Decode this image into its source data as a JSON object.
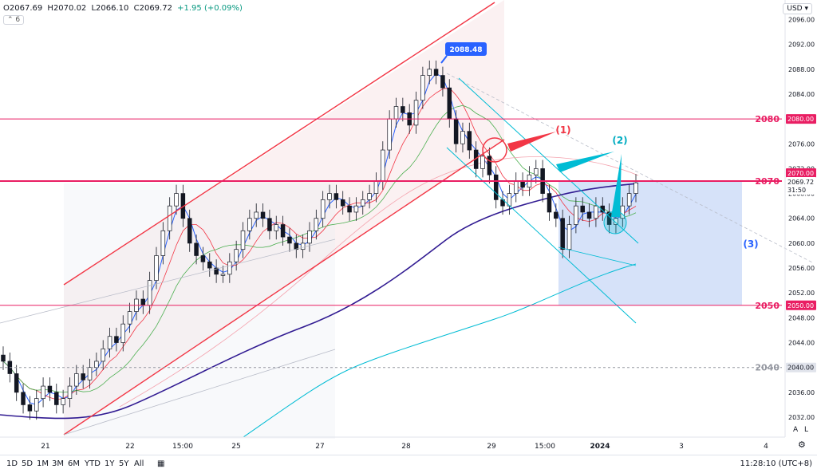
{
  "header": {
    "open": "O2067.69",
    "high": "H2070.02",
    "low": "L2066.10",
    "close": "C2069.72",
    "change": "+1.95 (+0.09%)",
    "collapse_label": "6",
    "currency": "USD"
  },
  "bottom": {
    "ranges": [
      "1D",
      "5D",
      "1M",
      "3M",
      "6M",
      "YTD",
      "1Y",
      "5Y",
      "All"
    ],
    "clock": "11:28:10 (UTC+8)",
    "scale_a": "A",
    "scale_l": "L"
  },
  "colors": {
    "up": "#089981",
    "down": "#131722",
    "level": "#e91e63",
    "channel": "#f23645",
    "ma_long": "#311b92",
    "ma_cyan": "#00bcd4",
    "target_box": "#c5d5f7"
  },
  "chart_data": {
    "type": "candlestick",
    "y_axis": {
      "range": [
        2030,
        2098
      ],
      "ticks": [
        2032,
        2036,
        2040,
        2044,
        2048,
        2052,
        2056,
        2060,
        2064,
        2068,
        2072,
        2076,
        2080,
        2084,
        2088,
        2092,
        2096
      ]
    },
    "x_axis": {
      "ticks": [
        "21",
        "22",
        "15:00",
        "25",
        "27",
        "28",
        "29",
        "15:00",
        "2024",
        "3",
        "4"
      ]
    },
    "price_labels": [
      {
        "value": 2080.0,
        "text": "2080.00"
      },
      {
        "value": 2070.0,
        "text": "2070.00"
      },
      {
        "value": 2069.72,
        "text": "2069.72"
      },
      {
        "value": 2068.8,
        "text": "31:50"
      },
      {
        "value": 2050.0,
        "text": "2050.00"
      },
      {
        "value": 2040.0,
        "text": "2040.00"
      }
    ],
    "levels": [
      {
        "value": 2080,
        "label": "2080"
      },
      {
        "value": 2070,
        "label": "2070"
      },
      {
        "value": 2050,
        "label": "2050"
      },
      {
        "value": 2040,
        "label": "2040"
      }
    ],
    "peak_callout": "2088.48",
    "annotations": [
      "(1)",
      "(2)",
      "(3)"
    ],
    "close_series": [
      2041,
      2039,
      2036,
      2034,
      2033,
      2035,
      2037,
      2036,
      2034,
      2035,
      2037,
      2039,
      2038,
      2040,
      2041,
      2043,
      2045,
      2044,
      2047,
      2049,
      2051,
      2050,
      2054,
      2058,
      2062,
      2066,
      2068,
      2064,
      2060,
      2058,
      2057,
      2056,
      2055,
      2055,
      2057,
      2059,
      2062,
      2064,
      2065,
      2064,
      2062,
      2063,
      2061,
      2060,
      2059,
      2060,
      2062,
      2064,
      2067,
      2068,
      2067,
      2066,
      2065,
      2066,
      2067,
      2068,
      2070,
      2075,
      2080,
      2082,
      2081,
      2079,
      2083,
      2087,
      2088,
      2087,
      2085,
      2080,
      2076,
      2078,
      2075,
      2072,
      2074,
      2071,
      2067,
      2066,
      2068,
      2070,
      2069,
      2071,
      2072,
      2068,
      2065,
      2064,
      2059,
      2063,
      2066,
      2065,
      2064,
      2066,
      2065,
      2063,
      2064,
      2066,
      2068,
      2069.72
    ]
  }
}
